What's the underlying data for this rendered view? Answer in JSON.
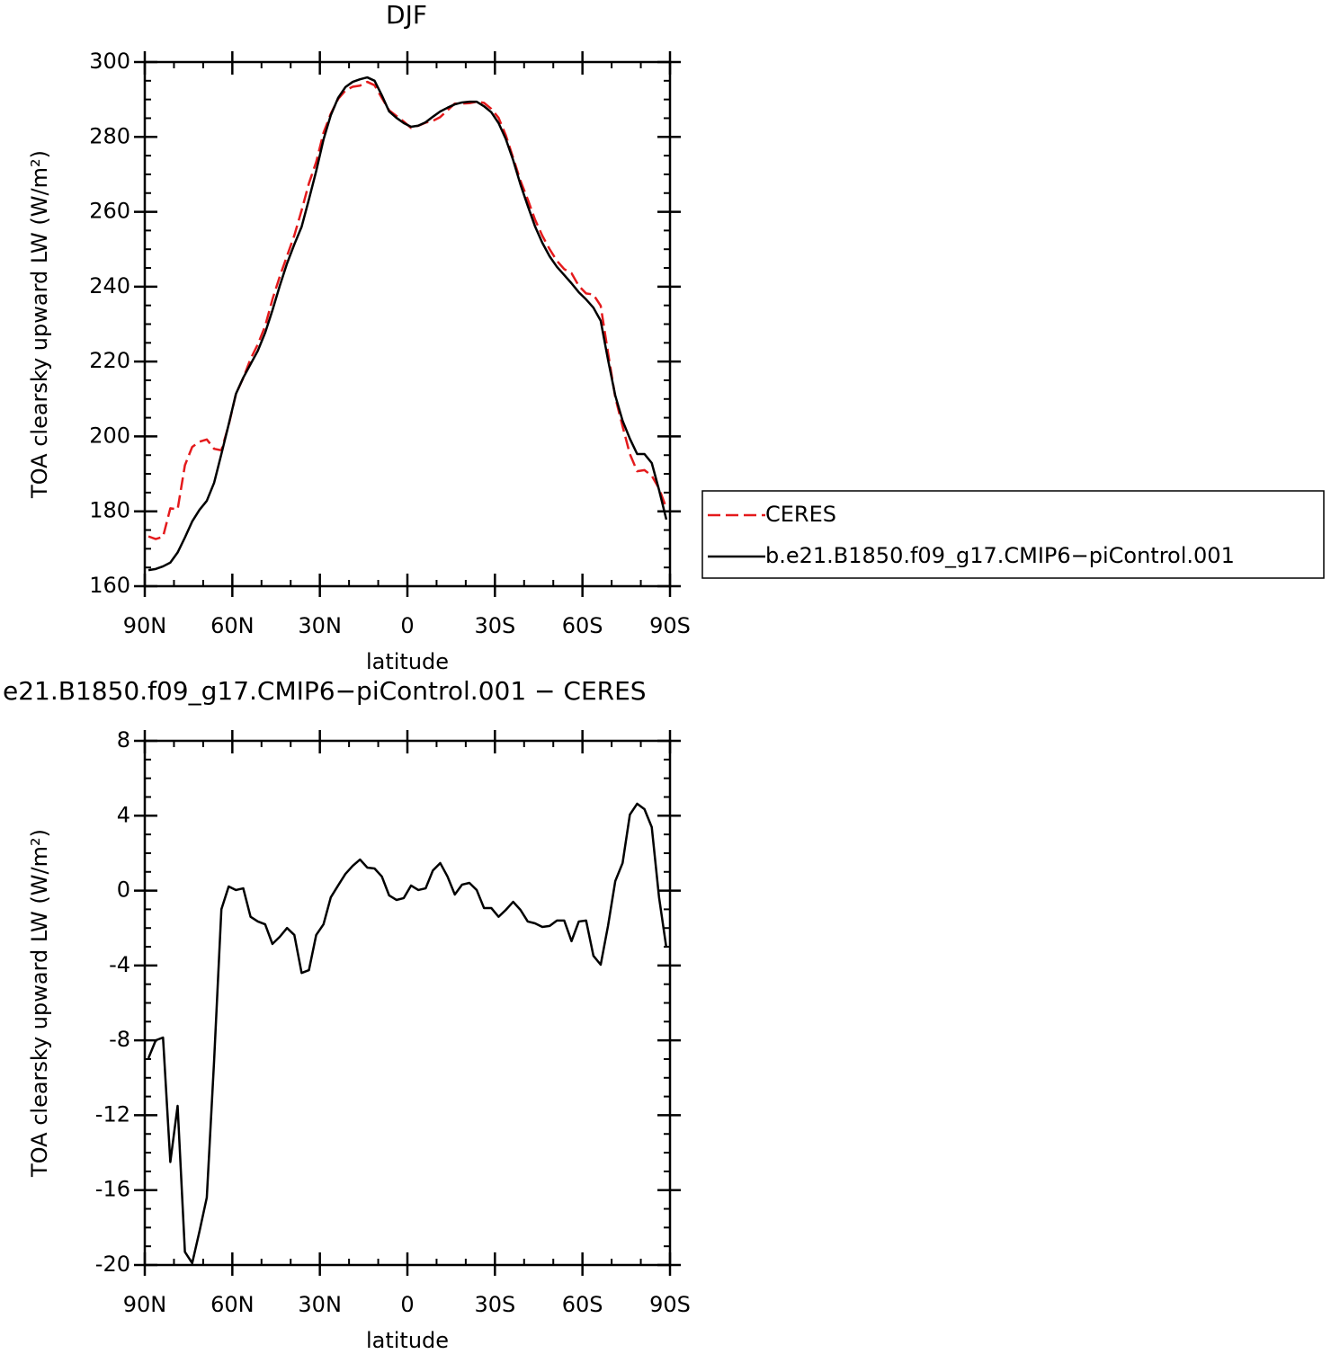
{
  "chart_data": [
    {
      "type": "line",
      "title": "DJF",
      "xlabel": "latitude",
      "ylabel": "TOA clearsky upward LW (W/m²)",
      "x": [
        88.75,
        86.25,
        83.75,
        81.25,
        78.75,
        76.25,
        73.75,
        71.25,
        68.75,
        66.25,
        63.75,
        61.25,
        58.75,
        56.25,
        53.75,
        51.25,
        48.75,
        46.25,
        43.75,
        41.25,
        38.75,
        36.25,
        33.75,
        31.25,
        28.75,
        26.25,
        23.75,
        21.25,
        18.75,
        16.25,
        13.75,
        11.25,
        8.75,
        6.25,
        3.75,
        1.25,
        -1.25,
        -3.75,
        -6.25,
        -8.75,
        -11.25,
        -13.75,
        -16.25,
        -18.75,
        -21.25,
        -23.75,
        -26.25,
        -28.75,
        -31.25,
        -33.75,
        -36.25,
        -38.75,
        -41.25,
        -43.75,
        -46.25,
        -48.75,
        -51.25,
        -53.75,
        -56.25,
        -58.75,
        -61.25,
        -63.75,
        -66.25,
        -68.75,
        -71.25,
        -73.75,
        -76.25,
        -78.75,
        -81.25,
        -83.75,
        -86.25,
        -88.75
      ],
      "series": [
        {
          "name": "CERES",
          "color": "#e41a1c",
          "line_style": "dashed",
          "values": [
            173.3,
            172.6,
            173.2,
            180.8,
            180.5,
            192.3,
            197.2,
            198.6,
            199.2,
            196.7,
            196.3,
            203.0,
            211.4,
            215.6,
            220.7,
            224.6,
            229.5,
            236.6,
            242.7,
            248.2,
            253.7,
            260.4,
            267.6,
            273.3,
            281.1,
            286.2,
            290.1,
            292.4,
            293.4,
            293.7,
            294.7,
            293.8,
            290.4,
            287.1,
            285.6,
            284.1,
            282.4,
            283.0,
            283.8,
            284.3,
            285.3,
            287.1,
            288.9,
            288.9,
            289.0,
            289.4,
            289.1,
            287.5,
            285.1,
            280.4,
            274.4,
            268.3,
            263.3,
            257.9,
            253.6,
            250.0,
            246.9,
            244.7,
            243.6,
            240.2,
            238.2,
            237.9,
            234.9,
            222.4,
            210.4,
            202.7,
            195.3,
            190.7,
            191.0,
            189.5,
            186.1,
            180.9
          ]
        },
        {
          "name": "b.e21.B1850.f09_g17.CMIP6−piControl.001",
          "color": "#000000",
          "line_style": "solid",
          "values": [
            164.3,
            164.6,
            165.3,
            166.3,
            169.0,
            173.0,
            177.3,
            180.4,
            182.8,
            187.6,
            195.3,
            203.2,
            211.4,
            215.7,
            219.3,
            222.9,
            227.7,
            233.7,
            240.2,
            246.2,
            251.3,
            256.0,
            263.3,
            270.9,
            279.3,
            285.8,
            290.4,
            293.3,
            294.7,
            295.4,
            295.9,
            295.0,
            291.1,
            286.8,
            285.1,
            283.7,
            282.7,
            283.0,
            283.9,
            285.4,
            286.8,
            287.8,
            288.7,
            289.2,
            289.4,
            289.4,
            288.2,
            286.6,
            283.7,
            279.4,
            273.8,
            267.3,
            261.6,
            256.1,
            251.7,
            248.1,
            245.3,
            243.1,
            240.9,
            238.5,
            236.6,
            234.4,
            230.9,
            220.5,
            210.9,
            204.2,
            199.4,
            195.3,
            195.3,
            192.9,
            185.7,
            177.8
          ]
        }
      ],
      "xlim": [
        90,
        -90
      ],
      "xticks": [
        {
          "value": 90,
          "label": "90N"
        },
        {
          "value": 60,
          "label": "60N"
        },
        {
          "value": 30,
          "label": "30N"
        },
        0,
        {
          "value": -30,
          "label": "30S"
        },
        {
          "value": -60,
          "label": "60S"
        },
        {
          "value": -90,
          "label": "90S"
        }
      ],
      "ylim": [
        160,
        300
      ],
      "yticks": [
        160,
        180,
        200,
        220,
        240,
        260,
        280,
        300
      ],
      "legend": "right"
    },
    {
      "type": "line",
      "title": "e21.B1850.f09_g17.CMIP6−piControl.001 − CERES",
      "xlabel": "latitude",
      "ylabel": "TOA clearsky upward LW (W/m²)",
      "x": [
        88.75,
        86.25,
        83.75,
        81.25,
        78.75,
        76.25,
        73.75,
        71.25,
        68.75,
        66.25,
        63.75,
        61.25,
        58.75,
        56.25,
        53.75,
        51.25,
        48.75,
        46.25,
        43.75,
        41.25,
        38.75,
        36.25,
        33.75,
        31.25,
        28.75,
        26.25,
        23.75,
        21.25,
        18.75,
        16.25,
        13.75,
        11.25,
        8.75,
        6.25,
        3.75,
        1.25,
        -1.25,
        -3.75,
        -6.25,
        -8.75,
        -11.25,
        -13.75,
        -16.25,
        -18.75,
        -21.25,
        -23.75,
        -26.25,
        -28.75,
        -31.25,
        -33.75,
        -36.25,
        -38.75,
        -41.25,
        -43.75,
        -46.25,
        -48.75,
        -51.25,
        -53.75,
        -56.25,
        -58.75,
        -61.25,
        -63.75,
        -66.25,
        -68.75,
        -71.25,
        -73.75,
        -76.25,
        -78.75,
        -81.25,
        -83.75,
        -86.25,
        -88.75
      ],
      "values": [
        -8.95,
        -8.0,
        -7.85,
        -14.5,
        -11.5,
        -19.3,
        -19.9,
        -18.2,
        -16.4,
        -9.1,
        -1.0,
        0.22,
        0.03,
        0.12,
        -1.4,
        -1.65,
        -1.8,
        -2.85,
        -2.47,
        -2.0,
        -2.37,
        -4.4,
        -4.25,
        -2.37,
        -1.8,
        -0.36,
        0.27,
        0.89,
        1.32,
        1.66,
        1.23,
        1.18,
        0.75,
        -0.26,
        -0.5,
        -0.4,
        0.27,
        0.03,
        0.12,
        1.08,
        1.47,
        0.75,
        -0.21,
        0.32,
        0.41,
        0.03,
        -0.93,
        -0.93,
        -1.4,
        -1.03,
        -0.6,
        -1.03,
        -1.65,
        -1.75,
        -1.94,
        -1.89,
        -1.6,
        -1.6,
        -2.7,
        -1.65,
        -1.6,
        -3.48,
        -3.96,
        -1.89,
        0.51,
        1.47,
        4.06,
        4.64,
        4.35,
        3.39,
        -0.36,
        -3.05
      ],
      "color": "#000000",
      "xlim": [
        90,
        -90
      ],
      "xticks": [
        {
          "value": 90,
          "label": "90N"
        },
        {
          "value": 60,
          "label": "60N"
        },
        {
          "value": 30,
          "label": "30N"
        },
        0,
        {
          "value": -30,
          "label": "30S"
        },
        {
          "value": -60,
          "label": "60S"
        },
        {
          "value": -90,
          "label": "90S"
        }
      ],
      "ylim": [
        -20,
        8
      ],
      "yticks": [
        -20,
        -16,
        -12,
        -8,
        -4,
        0,
        4,
        8
      ]
    }
  ]
}
